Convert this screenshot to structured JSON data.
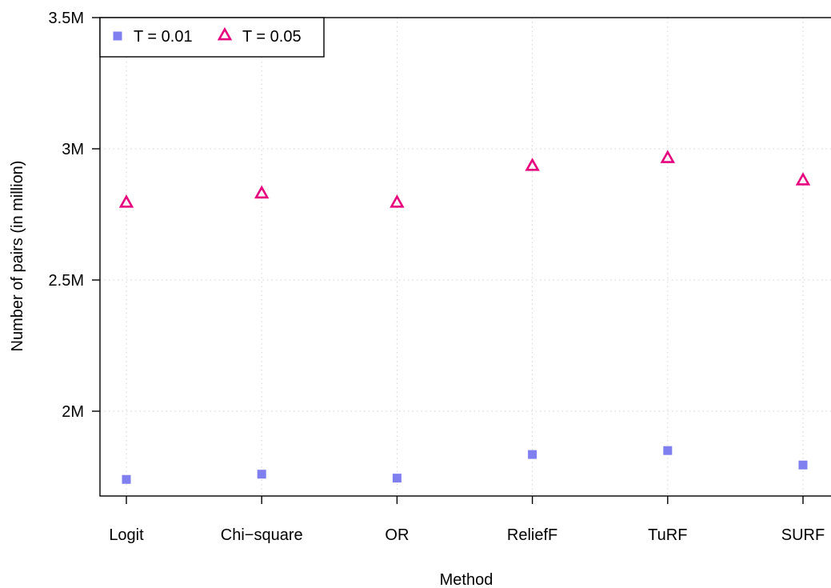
{
  "chart_data": {
    "type": "scatter",
    "categories": [
      "Logit",
      "Chi−square",
      "OR",
      "ReliefF",
      "TuRF",
      "SURF"
    ],
    "series": [
      {
        "name": "T = 0.01",
        "marker": "filled-square",
        "color": "#7f7ff0",
        "values": [
          1.74,
          1.76,
          1.745,
          1.835,
          1.85,
          1.795
        ]
      },
      {
        "name": "T = 0.05",
        "marker": "open-triangle",
        "color": "#e6007e",
        "values": [
          2.795,
          2.83,
          2.795,
          2.935,
          2.965,
          2.88
        ]
      }
    ],
    "xlabel": "Method",
    "ylabel": "Number of pairs (in million)",
    "yticks": [
      2,
      2.5,
      3,
      3.5
    ],
    "ytick_labels": [
      "2M",
      "2.5M",
      "3M",
      "3.5M"
    ],
    "ylim": [
      1.68,
      3.5
    ],
    "grid": true,
    "legend_position": "top-left"
  }
}
